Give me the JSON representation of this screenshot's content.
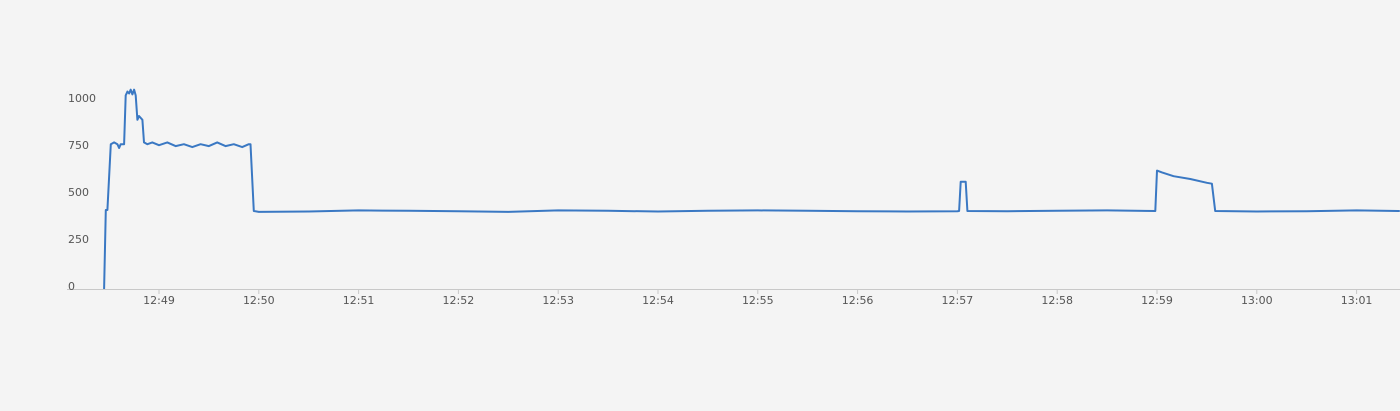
{
  "chart_data": {
    "type": "line",
    "title": "",
    "xlabel": "",
    "ylabel": "",
    "xlim": [
      "12:48:05",
      "13:01:26"
    ],
    "ylim": [
      0,
      1050
    ],
    "grid": false,
    "line_color": "#3a78c3",
    "y_ticks": [
      {
        "value": 0,
        "label": "0"
      },
      {
        "value": 250,
        "label": "250"
      },
      {
        "value": 500,
        "label": "500"
      },
      {
        "value": 750,
        "label": "750"
      },
      {
        "value": 1000,
        "label": "1000"
      }
    ],
    "x_ticks": [
      {
        "value": "12:49:00",
        "label": "12:49"
      },
      {
        "value": "12:50:00",
        "label": "12:50"
      },
      {
        "value": "12:51:00",
        "label": "12:51"
      },
      {
        "value": "12:52:00",
        "label": "12:52"
      },
      {
        "value": "12:53:00",
        "label": "12:53"
      },
      {
        "value": "12:54:00",
        "label": "12:54"
      },
      {
        "value": "12:55:00",
        "label": "12:55"
      },
      {
        "value": "12:56:00",
        "label": "12:56"
      },
      {
        "value": "12:57:00",
        "label": "12:57"
      },
      {
        "value": "12:58:00",
        "label": "12:58"
      },
      {
        "value": "12:59:00",
        "label": "12:59"
      },
      {
        "value": "13:00:00",
        "label": "13:00"
      },
      {
        "value": "13:01:00",
        "label": "13:01"
      }
    ],
    "series": [
      {
        "points": [
          [
            "12:48:27",
            0
          ],
          [
            "12:48:28",
            420
          ],
          [
            "12:48:29",
            420
          ],
          [
            "12:48:31",
            770
          ],
          [
            "12:48:33",
            780
          ],
          [
            "12:48:35",
            770
          ],
          [
            "12:48:36",
            750
          ],
          [
            "12:48:37",
            770
          ],
          [
            "12:48:39",
            770
          ],
          [
            "12:48:40",
            1030
          ],
          [
            "12:48:41",
            1050
          ],
          [
            "12:48:42",
            1040
          ],
          [
            "12:48:43",
            1060
          ],
          [
            "12:48:44",
            1035
          ],
          [
            "12:48:45",
            1060
          ],
          [
            "12:48:46",
            1030
          ],
          [
            "12:48:47",
            900
          ],
          [
            "12:48:48",
            920
          ],
          [
            "12:48:50",
            900
          ],
          [
            "12:48:51",
            780
          ],
          [
            "12:48:53",
            770
          ],
          [
            "12:48:56",
            780
          ],
          [
            "12:49:00",
            765
          ],
          [
            "12:49:05",
            780
          ],
          [
            "12:49:10",
            760
          ],
          [
            "12:49:15",
            770
          ],
          [
            "12:49:20",
            755
          ],
          [
            "12:49:25",
            770
          ],
          [
            "12:49:30",
            760
          ],
          [
            "12:49:35",
            780
          ],
          [
            "12:49:40",
            760
          ],
          [
            "12:49:45",
            770
          ],
          [
            "12:49:50",
            755
          ],
          [
            "12:49:54",
            770
          ],
          [
            "12:49:55",
            770
          ],
          [
            "12:49:57",
            415
          ],
          [
            "12:50:00",
            410
          ],
          [
            "12:50:30",
            412
          ],
          [
            "12:51:00",
            418
          ],
          [
            "12:51:30",
            416
          ],
          [
            "12:52:00",
            414
          ],
          [
            "12:52:30",
            410
          ],
          [
            "12:53:00",
            418
          ],
          [
            "12:53:30",
            416
          ],
          [
            "12:54:00",
            412
          ],
          [
            "12:54:30",
            416
          ],
          [
            "12:55:00",
            418
          ],
          [
            "12:55:30",
            416
          ],
          [
            "12:56:00",
            414
          ],
          [
            "12:56:30",
            412
          ],
          [
            "12:57:00",
            414
          ],
          [
            "12:57:01",
            415
          ],
          [
            "12:57:02",
            570
          ],
          [
            "12:57:05",
            570
          ],
          [
            "12:57:06",
            415
          ],
          [
            "12:57:30",
            414
          ],
          [
            "12:58:00",
            416
          ],
          [
            "12:58:30",
            418
          ],
          [
            "12:58:59",
            415
          ],
          [
            "12:59:00",
            630
          ],
          [
            "12:59:03",
            620
          ],
          [
            "12:59:10",
            600
          ],
          [
            "12:59:20",
            585
          ],
          [
            "12:59:30",
            565
          ],
          [
            "12:59:33",
            560
          ],
          [
            "12:59:35",
            415
          ],
          [
            "13:00:00",
            412
          ],
          [
            "13:00:30",
            414
          ],
          [
            "13:01:00",
            418
          ],
          [
            "13:01:26",
            415
          ]
        ]
      }
    ]
  }
}
